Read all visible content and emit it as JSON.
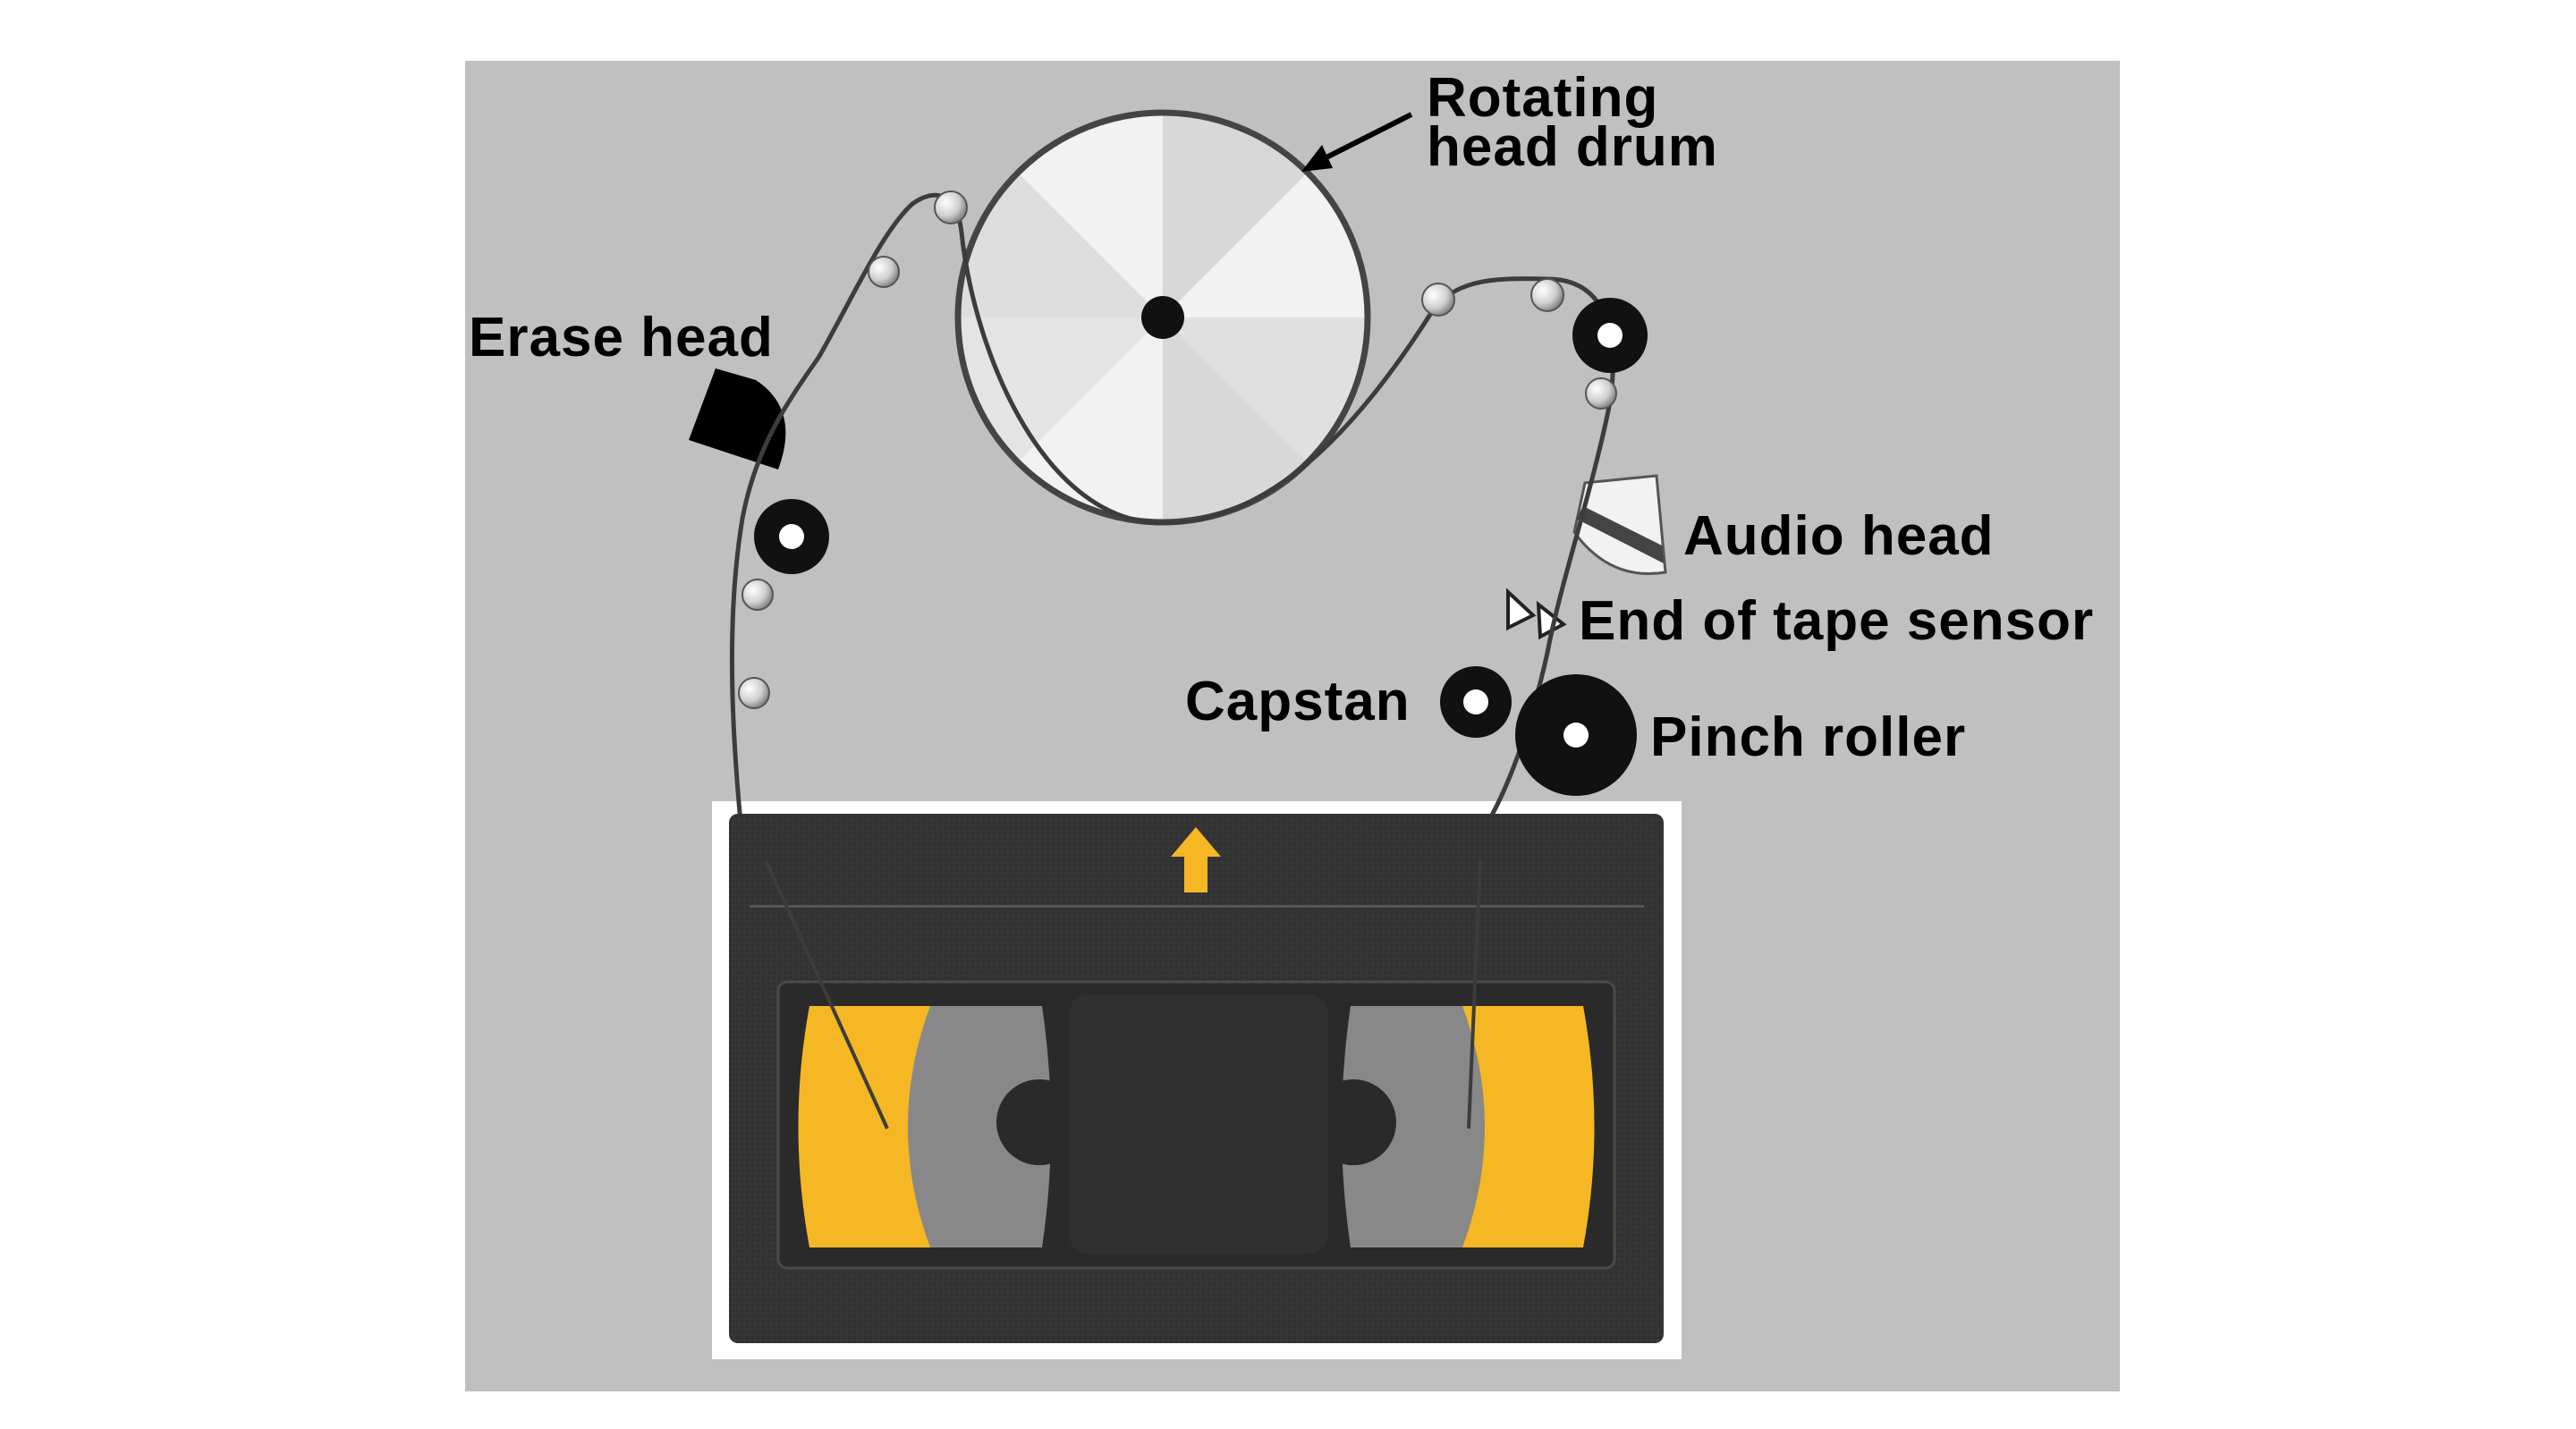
{
  "labels": {
    "drum_line1": "Rotating",
    "drum_line2": "head drum",
    "erase_head": "Erase head",
    "audio_head": "Audio head",
    "end_of_tape_sensor": "End of tape sensor",
    "capstan": "Capstan",
    "pinch_roller": "Pinch roller"
  },
  "colors": {
    "panel": "#c0c0c0",
    "tape": "#3c3c3c",
    "cassette": "#333333",
    "reel_accent": "#f5b824",
    "arrow": "#f5b824",
    "guide": "#e8e8e8"
  }
}
